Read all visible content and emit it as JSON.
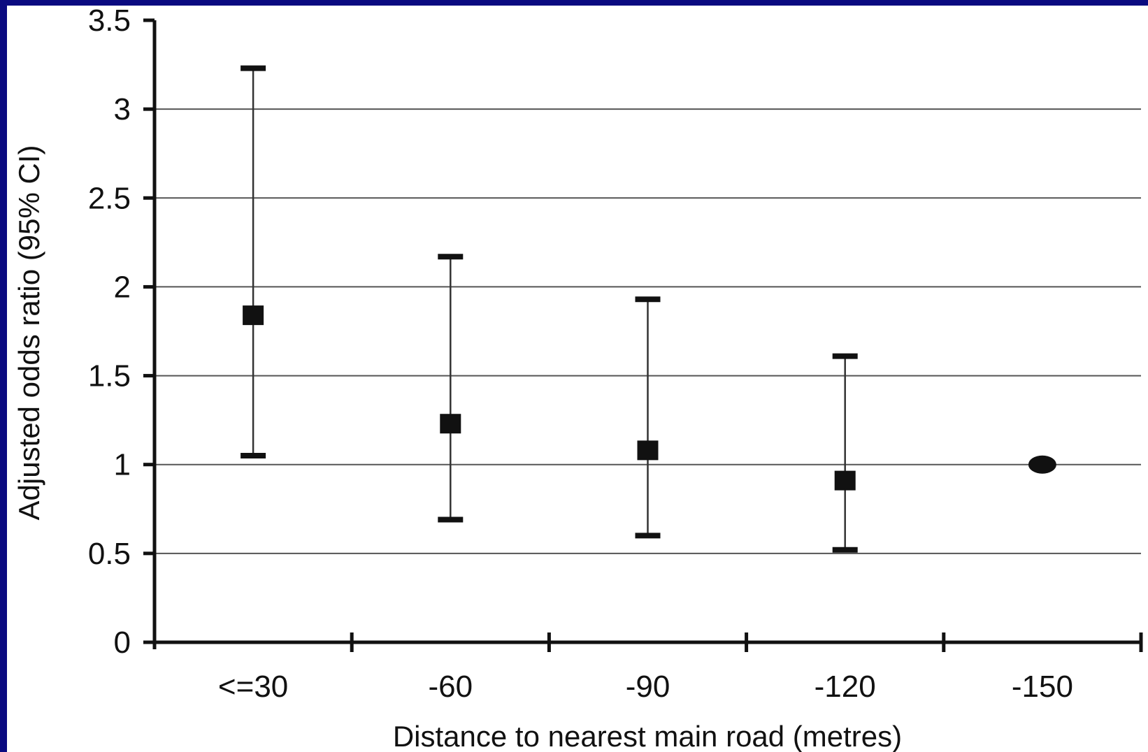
{
  "chart_data": {
    "type": "scatter",
    "title": "",
    "xlabel": "Distance to nearest main road (metres)",
    "ylabel": "Adjusted odds ratio (95% CI)",
    "categories": [
      "<=30",
      "-60",
      "-90",
      "-120",
      "-150"
    ],
    "y_tick_labels": [
      "0",
      "0.5",
      "1",
      "1.5",
      "2",
      "2.5",
      "3",
      "3.5"
    ],
    "ylim": [
      0,
      3.5
    ],
    "grid": true,
    "legend": "none",
    "series": [
      {
        "odds_ratio": [
          1.84,
          1.23,
          1.08,
          0.91,
          1.0
        ],
        "ci_lower": [
          1.05,
          0.69,
          0.6,
          0.52,
          null
        ],
        "ci_upper": [
          3.23,
          2.17,
          1.93,
          1.61,
          null
        ],
        "markers": [
          "square",
          "square",
          "square",
          "square",
          "circle"
        ]
      }
    ],
    "colors": {
      "background": "#0a0a80",
      "plot": "#ffffff",
      "ink": "#111111",
      "grid": "#555555"
    }
  }
}
